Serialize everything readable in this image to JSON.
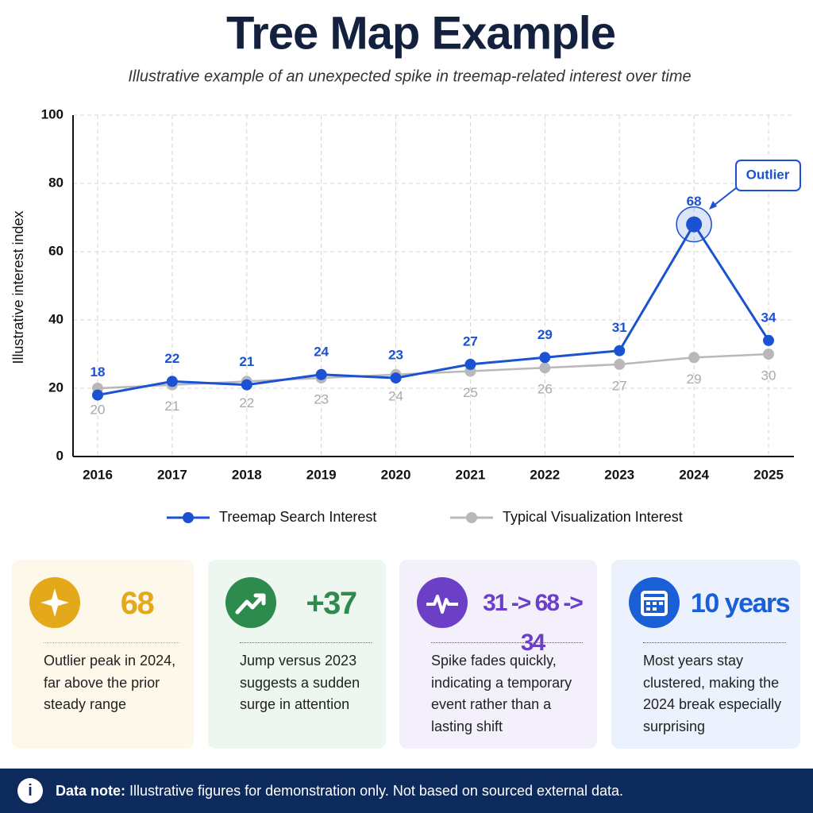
{
  "chart_data": {
    "type": "line",
    "title": "Tree Map Example",
    "subtitle": "Illustrative example of an unexpected spike in treemap-related interest over time",
    "y_label": "Illustrative interest index",
    "categories": [
      "2016",
      "2017",
      "2018",
      "2019",
      "2020",
      "2021",
      "2022",
      "2023",
      "2024",
      "2025"
    ],
    "series": [
      {
        "name": "Treemap Search Interest",
        "color": "#1a52d1",
        "values": [
          18,
          22,
          21,
          24,
          23,
          27,
          29,
          31,
          68,
          34
        ]
      },
      {
        "name": "Typical Visualization Interest",
        "color": "#b8b8bc",
        "values": [
          20,
          21,
          22,
          23,
          24,
          25,
          26,
          27,
          29,
          30
        ]
      }
    ],
    "ylim": [
      0,
      100
    ],
    "yticks": [
      0,
      20,
      40,
      60,
      80,
      100
    ],
    "grid": true,
    "legend": "bottom",
    "annotation": {
      "text": "Outlier",
      "series": 0,
      "index": 8
    }
  },
  "cards": [
    {
      "value": "68",
      "text": "Outlier peak in 2024, far above the prior steady range"
    },
    {
      "value": "+37",
      "text": "Jump versus 2023 suggests a sudden surge in attention"
    },
    {
      "value": "31 -> 68 -> 34",
      "text": "Spike fades quickly, indicating a temporary event rather than a lasting shift"
    },
    {
      "value": "10 years",
      "text": "Most years stay clustered, making the 2024 break especially surprising"
    }
  ],
  "note": {
    "label": "Data note:",
    "text": "Illustrative figures for demonstration only. Not based on sourced external data."
  }
}
